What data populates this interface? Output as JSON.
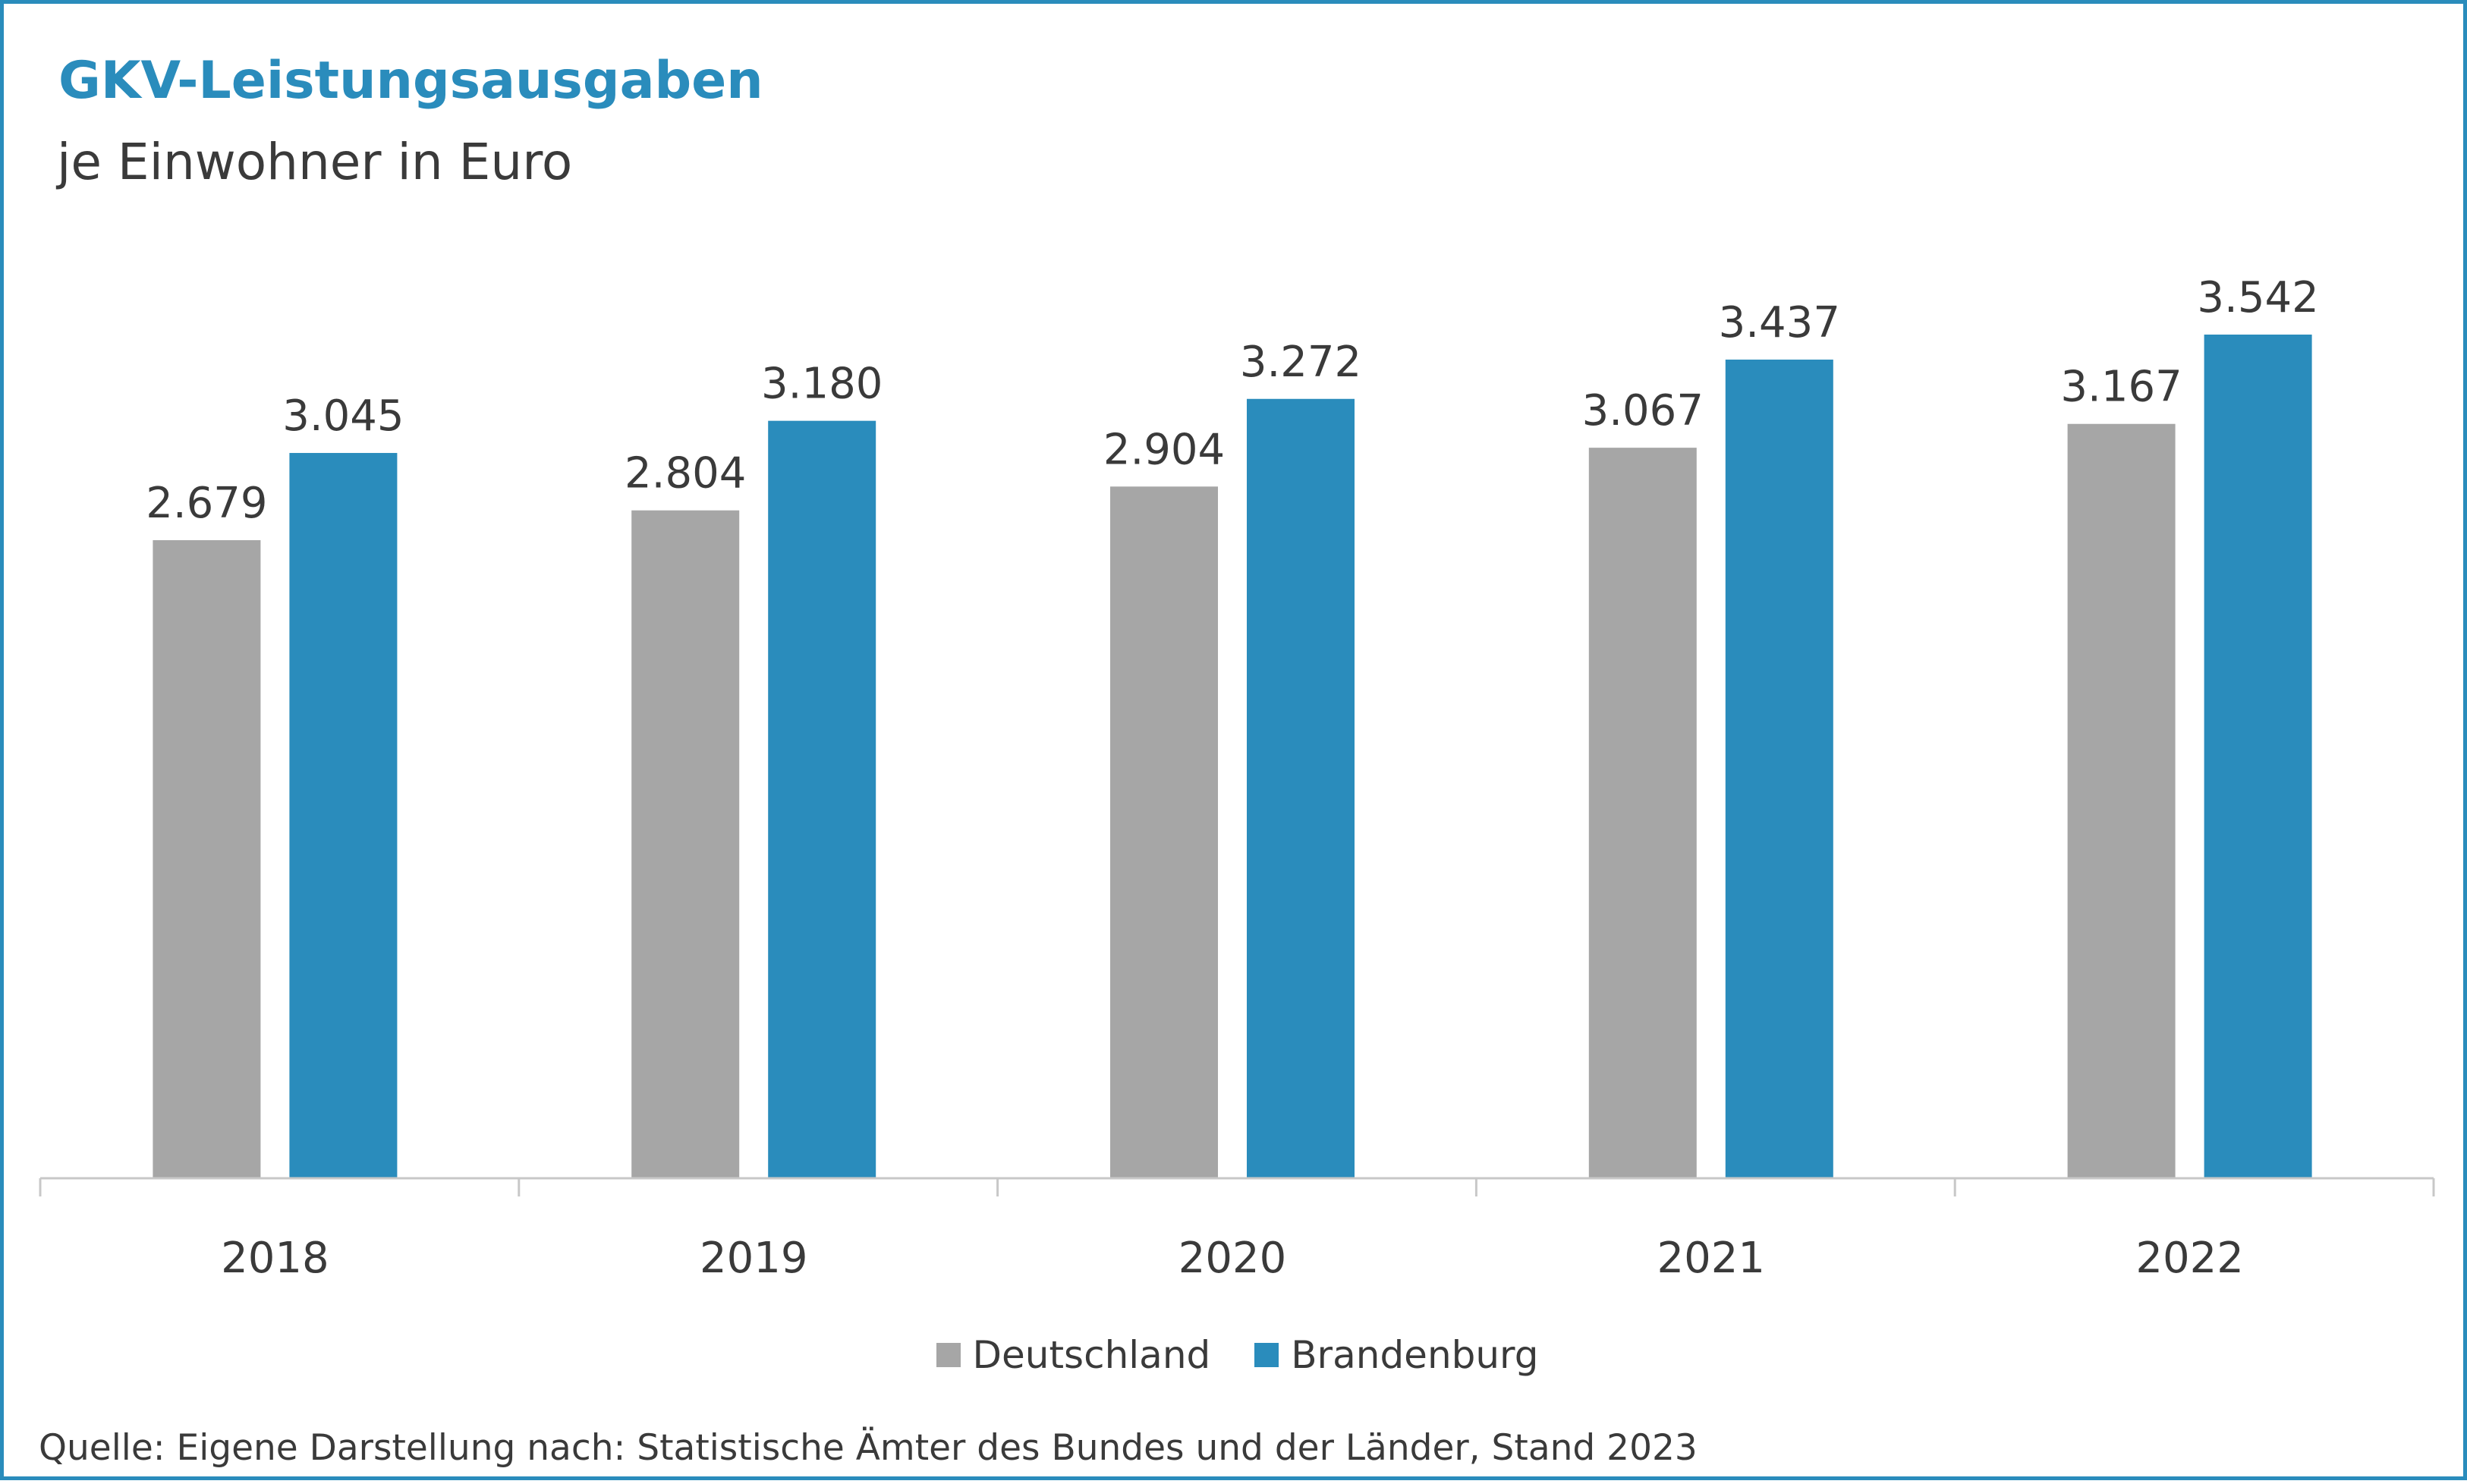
{
  "header": {
    "title": "GKV-Leistungsausgaben",
    "subtitle": "je Einwohner in Euro"
  },
  "footer": {
    "source": "Quelle: Eigene Darstellung nach: Statistische Ämter des Bundes und der Länder, Stand 2023"
  },
  "colors": {
    "frame": "#2a8cbc",
    "title": "#2a8cbc",
    "text": "#3a3a3a",
    "axis": "#c8c8c8"
  },
  "chart_data": {
    "type": "bar",
    "title": "GKV-Leistungsausgaben",
    "subtitle": "je Einwohner in Euro",
    "categories": [
      "2018",
      "2019",
      "2020",
      "2021",
      "2022"
    ],
    "series": [
      {
        "name": "Deutschland",
        "color": "#a6a6a6",
        "values": [
          2679,
          2804,
          2904,
          3067,
          3167
        ],
        "labels": [
          "2.679",
          "2.804",
          "2.904",
          "3.067",
          "3.167"
        ]
      },
      {
        "name": "Brandenburg",
        "color": "#2a8cbc",
        "values": [
          3045,
          3180,
          3272,
          3437,
          3542
        ],
        "labels": [
          "3.045",
          "3.180",
          "3.272",
          "3.437",
          "3.542"
        ]
      }
    ],
    "ylim": [
      0,
      3542
    ],
    "grid": false,
    "legend": "bottom-center"
  }
}
